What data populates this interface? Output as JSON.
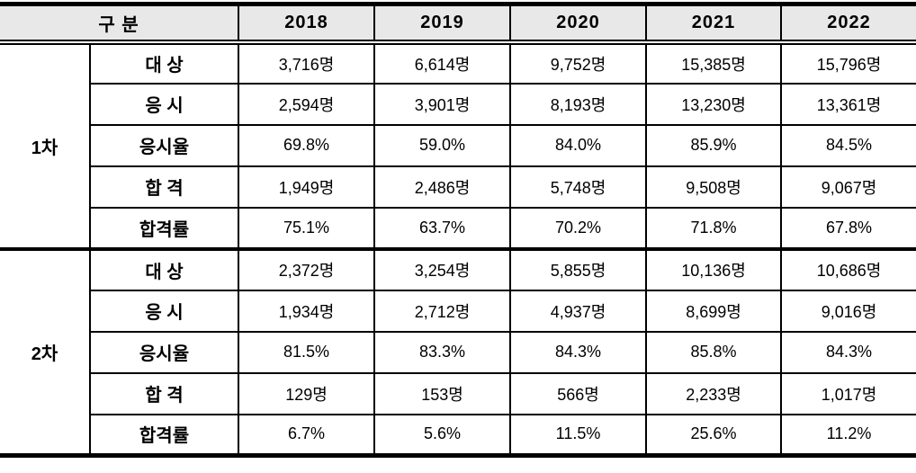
{
  "table": {
    "header": {
      "group_label": "구 분",
      "years": [
        "2018",
        "2019",
        "2020",
        "2021",
        "2022"
      ]
    },
    "sections": [
      {
        "group": "1차",
        "rows": [
          {
            "label": "대 상",
            "values": [
              "3,716명",
              "6,614명",
              "9,752명",
              "15,385명",
              "15,796명"
            ]
          },
          {
            "label": "응 시",
            "values": [
              "2,594명",
              "3,901명",
              "8,193명",
              "13,230명",
              "13,361명"
            ]
          },
          {
            "label": "응시율",
            "values": [
              "69.8%",
              "59.0%",
              "84.0%",
              "85.9%",
              "84.5%"
            ]
          },
          {
            "label": "합 격",
            "values": [
              "1,949명",
              "2,486명",
              "5,748명",
              "9,508명",
              "9,067명"
            ]
          },
          {
            "label": "합격률",
            "values": [
              "75.1%",
              "63.7%",
              "70.2%",
              "71.8%",
              "67.8%"
            ]
          }
        ]
      },
      {
        "group": "2차",
        "rows": [
          {
            "label": "대 상",
            "values": [
              "2,372명",
              "3,254명",
              "5,855명",
              "10,136명",
              "10,686명"
            ]
          },
          {
            "label": "응 시",
            "values": [
              "1,934명",
              "2,712명",
              "4,937명",
              "8,699명",
              "9,016명"
            ]
          },
          {
            "label": "응시율",
            "values": [
              "81.5%",
              "83.3%",
              "84.3%",
              "85.8%",
              "84.3%"
            ]
          },
          {
            "label": "합 격",
            "values": [
              "129명",
              "153명",
              "566명",
              "2,233명",
              "1,017명"
            ]
          },
          {
            "label": "합격률",
            "values": [
              "6.7%",
              "5.6%",
              "11.5%",
              "25.6%",
              "11.2%"
            ]
          }
        ]
      }
    ],
    "colors": {
      "header_bg": "#e8e8e8",
      "border": "#000000",
      "text": "#000000"
    }
  }
}
